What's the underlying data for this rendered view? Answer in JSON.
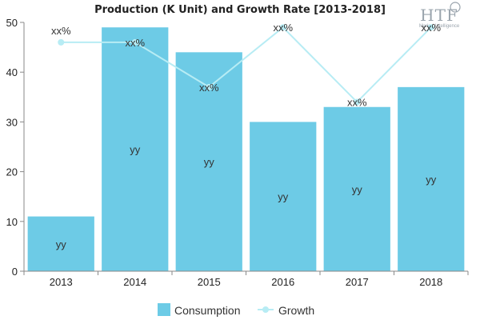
{
  "chart_data": {
    "type": "bar",
    "title": "Production (K Unit) and Growth Rate [2013-2018]",
    "categories": [
      "2013",
      "2014",
      "2015",
      "2016",
      "2017",
      "2018"
    ],
    "series": [
      {
        "name": "Consumption",
        "kind": "bar",
        "values": [
          11,
          49,
          44,
          30,
          33,
          37
        ],
        "labels": [
          "yy",
          "yy",
          "yy",
          "yy",
          "yy",
          "yy"
        ],
        "color": "#6dcbe6"
      },
      {
        "name": "Growth",
        "kind": "line",
        "values": [
          46,
          46,
          37,
          49,
          34,
          49
        ],
        "labels": [
          "",
          "xx%",
          "xx%",
          "xx%",
          "xx%",
          "xx%"
        ],
        "color": "#b7ecf4"
      }
    ],
    "extra_labels": [
      "xx%"
    ],
    "yticks": [
      "0",
      "10",
      "20",
      "30",
      "40",
      "50"
    ],
    "ylim": [
      0,
      50
    ],
    "grid": false,
    "legend_position": "bottom"
  },
  "watermark": {
    "main": "HTF",
    "sub": "Market Intelligence"
  }
}
